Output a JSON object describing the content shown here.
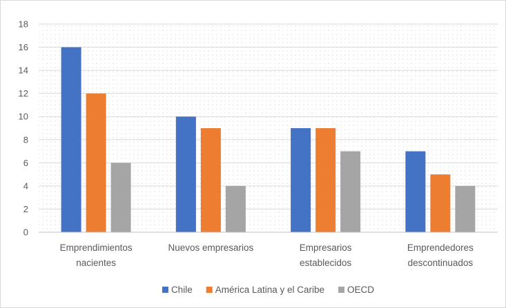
{
  "chart_data": {
    "type": "bar",
    "title": "",
    "xlabel": "",
    "ylabel": "",
    "ylim": [
      0,
      18
    ],
    "yticks": [
      0,
      2,
      4,
      6,
      8,
      10,
      12,
      14,
      16,
      18
    ],
    "categories": [
      [
        "Emprendimientos",
        "nacientes"
      ],
      [
        "Nuevos empresarios"
      ],
      [
        "Empresarios",
        "establecidos"
      ],
      [
        "Emprendedores",
        "descontinuados"
      ]
    ],
    "series": [
      {
        "name": "Chile",
        "color": "#4472c4",
        "values": [
          16,
          10,
          9,
          7
        ]
      },
      {
        "name": "América Latina y el Caribe",
        "color": "#ed7d31",
        "values": [
          12,
          9,
          9,
          5
        ]
      },
      {
        "name": "OECD",
        "color": "#a5a5a5",
        "values": [
          6,
          4,
          7,
          4
        ]
      }
    ],
    "grid": true,
    "legend_position": "bottom"
  }
}
